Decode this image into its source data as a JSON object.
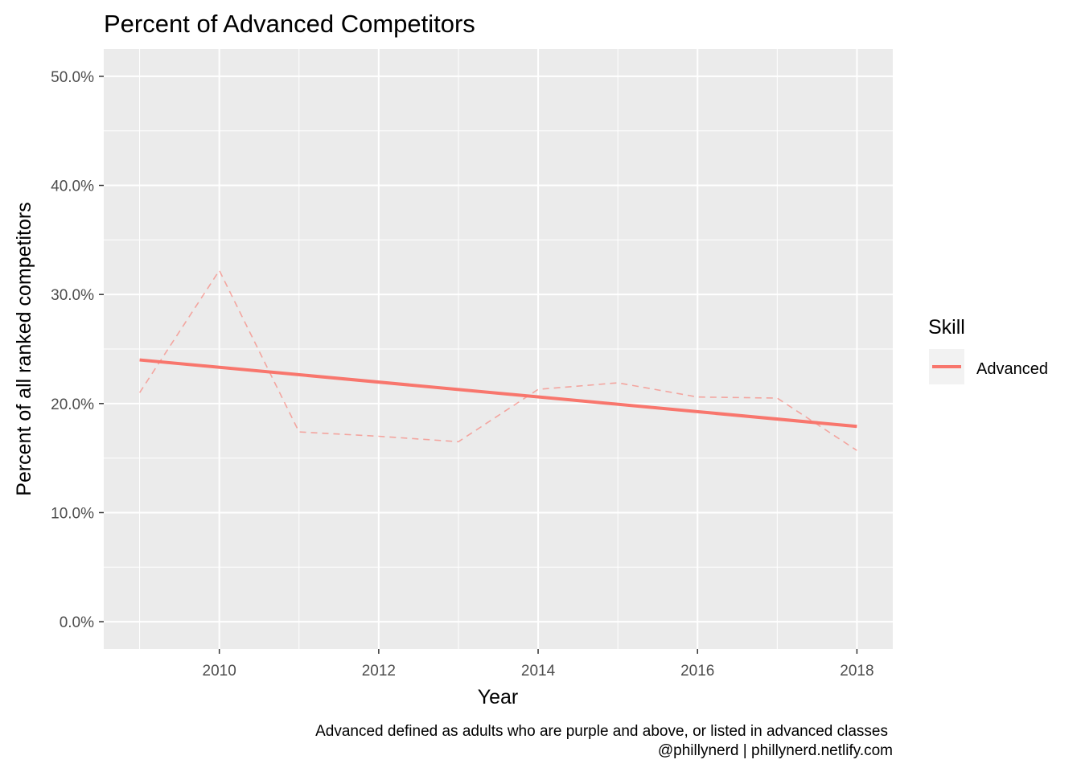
{
  "chart_data": {
    "type": "line",
    "title": "Percent of Advanced Competitors",
    "xlabel": "Year",
    "ylabel": "Percent of all ranked competitors",
    "xlim": [
      2008.55,
      2018.45
    ],
    "ylim": [
      -2.5,
      52.5
    ],
    "x_ticks": [
      2010,
      2012,
      2014,
      2016,
      2018
    ],
    "y_ticks": [
      0,
      10,
      20,
      30,
      40,
      50
    ],
    "y_tick_labels": [
      "0.0%",
      "10.0%",
      "20.0%",
      "30.0%",
      "40.0%",
      "50.0%"
    ],
    "grid": true,
    "legend": {
      "title": "Skill",
      "position": "right",
      "entries": [
        "Advanced"
      ]
    },
    "series": [
      {
        "name": "Advanced",
        "style": "dashed",
        "color": "#F8766D",
        "x": [
          2009,
          2010,
          2011,
          2012,
          2013,
          2014,
          2015,
          2016,
          2017,
          2018
        ],
        "values": [
          21.0,
          32.2,
          17.4,
          17.0,
          16.5,
          21.3,
          21.9,
          20.6,
          20.5,
          15.7
        ]
      },
      {
        "name": "Advanced",
        "style": "solid-trend",
        "color": "#F8766D",
        "x": [
          2009,
          2018
        ],
        "values": [
          24.0,
          17.9
        ]
      }
    ],
    "caption": [
      "Advanced defined as adults who are purple and above, or listed in advanced classes",
      "@phillynerd | phillynerd.netlify.com"
    ]
  }
}
